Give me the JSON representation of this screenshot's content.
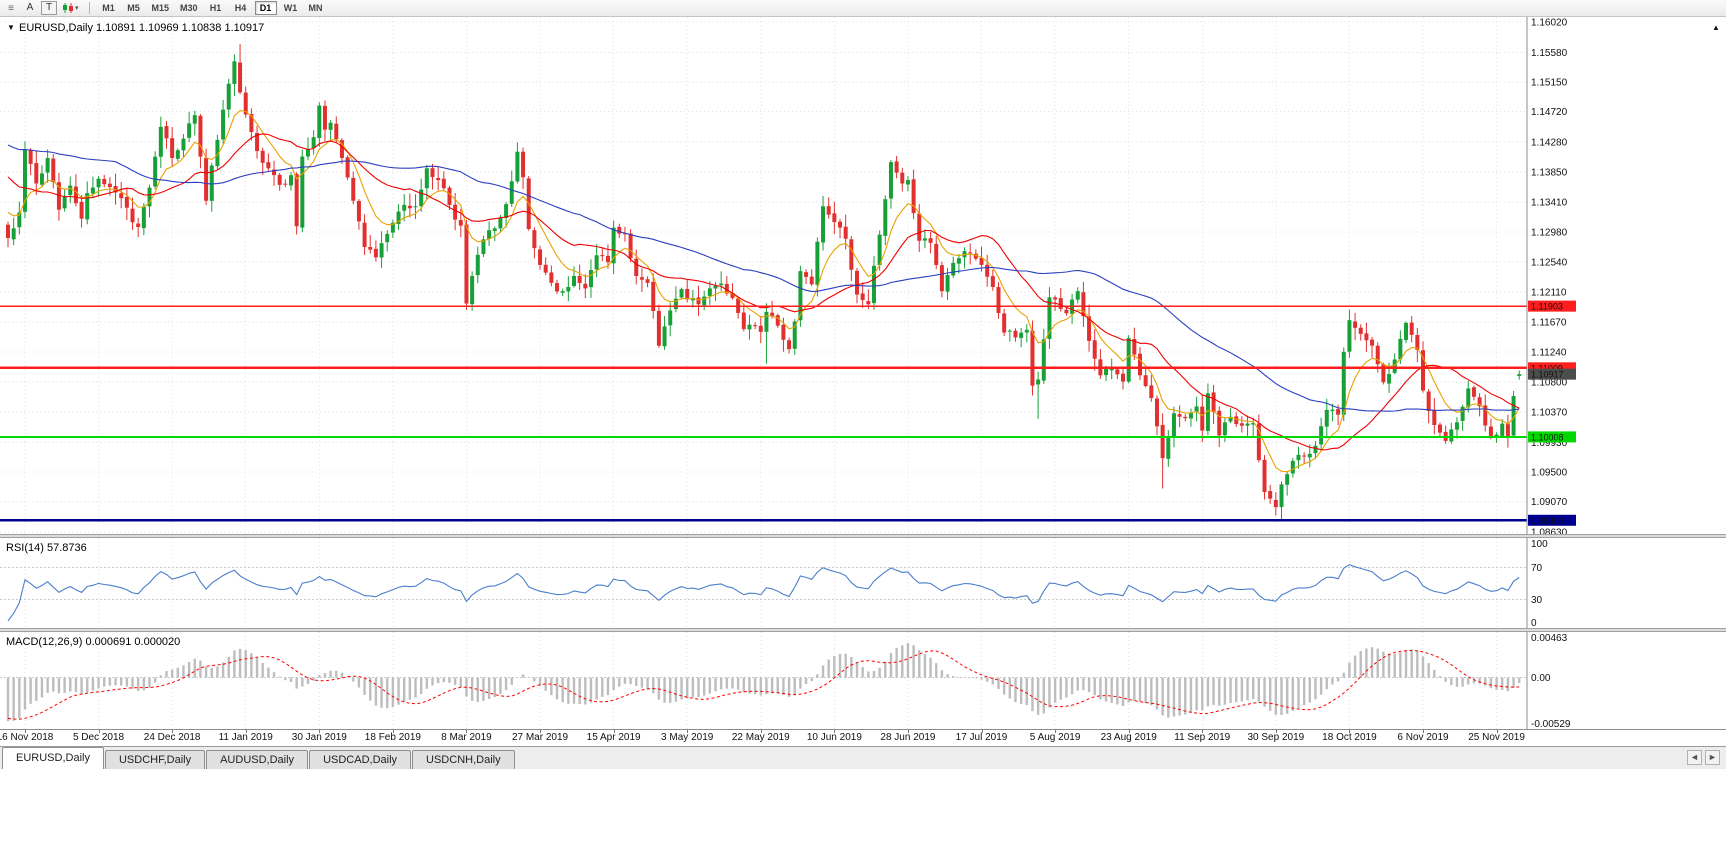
{
  "toolbar": {
    "menu_icon": "chart-list",
    "tool_a_label": "A",
    "tool_t_label": "T",
    "timeframes": [
      "M1",
      "M5",
      "M15",
      "M30",
      "H1",
      "H4",
      "D1",
      "W1",
      "MN"
    ],
    "active_timeframe": "D1"
  },
  "chart": {
    "title": "EURUSD,Daily 1.10891 1.10969 1.10838 1.10917",
    "symbol": "EURUSD",
    "period": "Daily",
    "ohlc": {
      "open": "1.10891",
      "high": "1.10969",
      "low": "1.10838",
      "close": "1.10917"
    },
    "price_ticks": [
      "1.16020",
      "1.15580",
      "1.15150",
      "1.14720",
      "1.14280",
      "1.13850",
      "1.13410",
      "1.12980",
      "1.12540",
      "1.12110",
      "1.11670",
      "1.11240",
      "1.10800",
      "1.10370",
      "1.09930",
      "1.09500",
      "1.09070",
      "1.08630"
    ],
    "hlines": [
      {
        "price": 1.11903,
        "label": "1.11903",
        "color": "#FF1E1E",
        "width": 1.6,
        "text": "#fff"
      },
      {
        "price": 1.11009,
        "label": "1.11009",
        "color": "#FF1E1E",
        "width": 2.6,
        "text": "#fff"
      },
      {
        "price": 1.10008,
        "label": "1.10008",
        "color": "#00D800",
        "width": 2.0,
        "text": "#003800"
      },
      {
        "price": 1.088,
        "label": "1.08800",
        "color": "#000090",
        "width": 2.6,
        "text": "#fff"
      }
    ],
    "bid": {
      "price": 1.10917,
      "label": "1.10917",
      "box_color": "#4d4d4d",
      "text": "#fff"
    },
    "dates": [
      "16 Nov 2018",
      "5 Dec 2018",
      "24 Dec 2018",
      "11 Jan 2019",
      "30 Jan 2019",
      "18 Feb 2019",
      "8 Mar 2019",
      "27 Mar 2019",
      "15 Apr 2019",
      "3 May 2019",
      "22 May 2019",
      "10 Jun 2019",
      "28 Jun 2019",
      "17 Jul 2019",
      "5 Aug 2019",
      "23 Aug 2019",
      "11 Sep 2019",
      "30 Sep 2019",
      "18 Oct 2019",
      "6 Nov 2019",
      "25 Nov 2019"
    ],
    "colors": {
      "bull": "#18A038",
      "bear": "#E23030",
      "wick_bull": "#18A038",
      "wick_bear": "#E23030",
      "ma_fast": "#E8A200",
      "ma_mid": "#F00000",
      "ma_slow": "#2B3FC0",
      "grid": "#E2E2E2",
      "scale_line": "#8c8c8c",
      "background": "#FFFFFF"
    }
  },
  "rsi": {
    "label": "RSI(14) 57.8736",
    "period": 14,
    "value": "57.8736",
    "levels": [
      "100",
      "70",
      "30",
      "0"
    ],
    "level_values": [
      100,
      70,
      30,
      0
    ],
    "color": "#4B7FCC"
  },
  "macd": {
    "label": "MACD(12,26,9) 0.000691 0.000020",
    "params": "12,26,9",
    "main_value": "0.000691",
    "signal_value": "0.000020",
    "scale_labels": [
      "0.00463",
      "0.00",
      "-0.00529"
    ],
    "scale_max": 0.00463,
    "scale_min": -0.00529,
    "hist_color": "#BDBDBD",
    "signal_color": "#FF0000"
  },
  "tabs": [
    {
      "label": "EURUSD,Daily",
      "active": true
    },
    {
      "label": "USDCHF,Daily",
      "active": false
    },
    {
      "label": "AUDUSD,Daily",
      "active": false
    },
    {
      "label": "USDCAD,Daily",
      "active": false
    },
    {
      "label": "USDCNH,Daily",
      "active": false
    }
  ],
  "chart_data": {
    "type": "candlestick",
    "symbol": "EURUSD",
    "timeframe": "Daily",
    "bars": 268,
    "y_range": [
      1.0863,
      1.1602
    ],
    "x_tick_step_bars": 13,
    "first_tick_bar": 3,
    "keypoints": [
      [
        0,
        1.1289
      ],
      [
        2,
        1.1326
      ],
      [
        3,
        1.1417
      ],
      [
        5,
        1.1368
      ],
      [
        7,
        1.1405
      ],
      [
        9,
        1.133
      ],
      [
        11,
        1.1365
      ],
      [
        13,
        1.1317
      ],
      [
        14,
        1.1354
      ],
      [
        16,
        1.1375
      ],
      [
        19,
        1.1355
      ],
      [
        23,
        1.1305
      ],
      [
        25,
        1.1362
      ],
      [
        27,
        1.145
      ],
      [
        29,
        1.1405
      ],
      [
        31,
        1.1433
      ],
      [
        33,
        1.1467
      ],
      [
        35,
        1.1343
      ],
      [
        36,
        1.1394
      ],
      [
        38,
        1.1475
      ],
      [
        40,
        1.1545
      ],
      [
        41,
        1.15
      ],
      [
        42,
        1.1468
      ],
      [
        44,
        1.1415
      ],
      [
        46,
        1.139
      ],
      [
        48,
        1.1366
      ],
      [
        50,
        1.138
      ],
      [
        51,
        1.1306
      ],
      [
        52,
        1.1407
      ],
      [
        54,
        1.1435
      ],
      [
        55,
        1.1481
      ],
      [
        56,
        1.1446
      ],
      [
        57,
        1.1456
      ],
      [
        59,
        1.1405
      ],
      [
        61,
        1.1343
      ],
      [
        63,
        1.1276
      ],
      [
        65,
        1.1261
      ],
      [
        67,
        1.1295
      ],
      [
        68,
        1.1311
      ],
      [
        70,
        1.1337
      ],
      [
        72,
        1.1335
      ],
      [
        74,
        1.139
      ],
      [
        76,
        1.1373
      ],
      [
        78,
        1.1337
      ],
      [
        80,
        1.1307
      ],
      [
        81,
        1.1194
      ],
      [
        82,
        1.1234
      ],
      [
        84,
        1.1287
      ],
      [
        86,
        1.1303
      ],
      [
        88,
        1.1338
      ],
      [
        90,
        1.1414
      ],
      [
        91,
        1.1377
      ],
      [
        92,
        1.1302
      ],
      [
        94,
        1.125
      ],
      [
        96,
        1.1224
      ],
      [
        98,
        1.1212
      ],
      [
        100,
        1.1234
      ],
      [
        102,
        1.1216
      ],
      [
        104,
        1.1264
      ],
      [
        106,
        1.1254
      ],
      [
        107,
        1.1304
      ],
      [
        109,
        1.1295
      ],
      [
        111,
        1.1234
      ],
      [
        113,
        1.1224
      ],
      [
        115,
        1.1133
      ],
      [
        117,
        1.1184
      ],
      [
        119,
        1.1215
      ],
      [
        120,
        1.12
      ],
      [
        122,
        1.1193
      ],
      [
        124,
        1.1216
      ],
      [
        126,
        1.1223
      ],
      [
        128,
        1.1202
      ],
      [
        130,
        1.1157
      ],
      [
        132,
        1.1162
      ],
      [
        133,
        1.1153
      ],
      [
        134,
        1.1182
      ],
      [
        136,
        1.1162
      ],
      [
        138,
        1.1128
      ],
      [
        139,
        1.1168
      ],
      [
        140,
        1.1241
      ],
      [
        142,
        1.1222
      ],
      [
        144,
        1.1335
      ],
      [
        146,
        1.1312
      ],
      [
        148,
        1.1288
      ],
      [
        150,
        1.1207
      ],
      [
        152,
        1.1193
      ],
      [
        154,
        1.1294
      ],
      [
        156,
        1.1399
      ],
      [
        158,
        1.1368
      ],
      [
        159,
        1.1373
      ],
      [
        161,
        1.1285
      ],
      [
        163,
        1.1282
      ],
      [
        165,
        1.1212
      ],
      [
        167,
        1.1253
      ],
      [
        169,
        1.127
      ],
      [
        171,
        1.1259
      ],
      [
        172,
        1.125
      ],
      [
        174,
        1.1218
      ],
      [
        176,
        1.1152
      ],
      [
        178,
        1.1145
      ],
      [
        180,
        1.1156
      ],
      [
        181,
        1.1075
      ],
      [
        182,
        1.1084
      ],
      [
        184,
        1.1203
      ],
      [
        185,
        1.12
      ],
      [
        187,
        1.118
      ],
      [
        189,
        1.1212
      ],
      [
        191,
        1.114
      ],
      [
        193,
        1.109
      ],
      [
        195,
        1.11
      ],
      [
        197,
        1.1081
      ],
      [
        198,
        1.1144
      ],
      [
        200,
        1.109
      ],
      [
        202,
        1.1057
      ],
      [
        204,
        1.097
      ],
      [
        206,
        1.1035
      ],
      [
        208,
        1.1028
      ],
      [
        210,
        1.1045
      ],
      [
        211,
        1.101
      ],
      [
        212,
        1.1064
      ],
      [
        214,
        1.1003
      ],
      [
        216,
        1.103
      ],
      [
        218,
        1.1017
      ],
      [
        220,
        1.1021
      ],
      [
        222,
        1.0921
      ],
      [
        224,
        1.0899
      ],
      [
        225,
        1.0932
      ],
      [
        227,
        1.0966
      ],
      [
        229,
        1.0973
      ],
      [
        231,
        1.0988
      ],
      [
        233,
        1.104
      ],
      [
        235,
        1.1033
      ],
      [
        236,
        1.1124
      ],
      [
        237,
        1.117
      ],
      [
        239,
        1.115
      ],
      [
        241,
        1.1133
      ],
      [
        243,
        1.108
      ],
      [
        245,
        1.1113
      ],
      [
        247,
        1.1166
      ],
      [
        249,
        1.1127
      ],
      [
        250,
        1.1068
      ],
      [
        252,
        1.1018
      ],
      [
        254,
        1.0995
      ],
      [
        256,
        1.1022
      ],
      [
        258,
        1.1071
      ],
      [
        260,
        1.1045
      ],
      [
        262,
        1.1001
      ],
      [
        264,
        1.102
      ],
      [
        265,
        1.1001
      ],
      [
        266,
        1.106
      ],
      [
        267,
        1.10917
      ]
    ],
    "special_wicks": [
      [
        41,
        "high",
        1.157
      ],
      [
        134,
        "low",
        1.1107
      ],
      [
        182,
        "low",
        1.1027
      ],
      [
        204,
        "low",
        1.0926
      ],
      [
        225,
        "low",
        1.0879
      ]
    ],
    "last_candle": {
      "open": 1.10891,
      "high": 1.10969,
      "low": 1.10838,
      "close": 1.10917
    },
    "moving_averages": [
      {
        "type": "ema",
        "period": 8,
        "color_key": "ma_fast"
      },
      {
        "type": "sma",
        "period": 20,
        "color_key": "ma_mid"
      },
      {
        "type": "sma",
        "period": 50,
        "color_key": "ma_slow"
      }
    ]
  }
}
